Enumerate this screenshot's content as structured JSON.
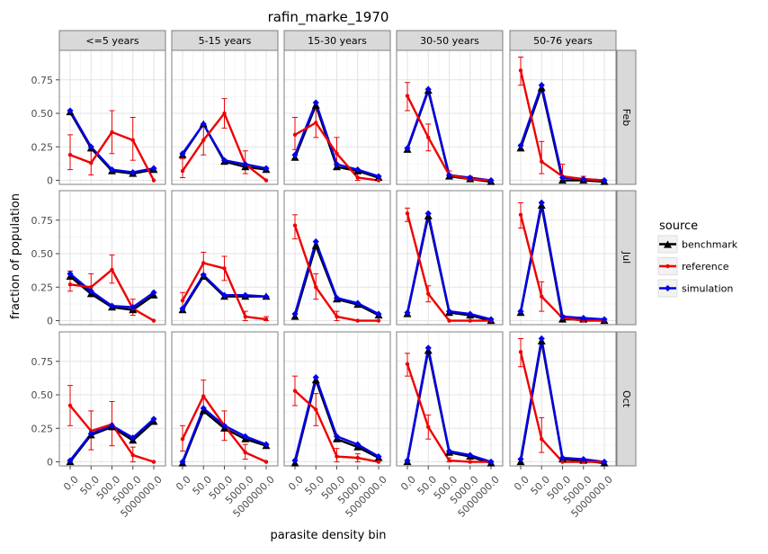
{
  "chart_data": {
    "type": "line",
    "title": "rafin_marke_1970",
    "xlabel": "parasite density bin",
    "ylabel": "fraction of population",
    "x_categories": [
      "0.0",
      "50.0",
      "500.0",
      "5000.0",
      "5000000.0"
    ],
    "y_ticks": [
      0,
      0.25,
      0.5,
      0.75
    ],
    "y_tick_labels": [
      "0",
      "0.25",
      "0.50",
      "0.75"
    ],
    "ylim": [
      -0.03,
      0.97
    ],
    "grid": true,
    "legend": {
      "title": "source",
      "position": "right",
      "entries": [
        {
          "name": "benchmark",
          "color": "#000000",
          "marker": "triangle"
        },
        {
          "name": "reference",
          "color": "#ee0000",
          "marker": "point"
        },
        {
          "name": "simulation",
          "color": "#0000ee",
          "marker": "diamond"
        }
      ]
    },
    "columns": [
      "<=5 years",
      "5-15 years",
      "15-30 years",
      "30-50 years",
      "50-76 years"
    ],
    "rows": [
      "Feb",
      "Jul",
      "Oct"
    ],
    "panels": [
      {
        "row": 0,
        "col": 0,
        "benchmark": [
          0.51,
          0.24,
          0.07,
          0.05,
          0.08
        ],
        "simulation": [
          0.52,
          0.25,
          0.08,
          0.06,
          0.09
        ],
        "reference": [
          0.19,
          0.13,
          0.36,
          0.3,
          0.0
        ],
        "ref_err": [
          [
            0.08,
            0.34
          ],
          [
            0.04,
            0.22
          ],
          [
            0.2,
            0.52
          ],
          [
            0.15,
            0.47
          ],
          [
            0.0,
            0.0
          ]
        ]
      },
      {
        "row": 0,
        "col": 1,
        "benchmark": [
          0.19,
          0.42,
          0.14,
          0.1,
          0.08
        ],
        "simulation": [
          0.2,
          0.42,
          0.15,
          0.12,
          0.09
        ],
        "reference": [
          0.07,
          0.3,
          0.5,
          0.12,
          0.0
        ],
        "ref_err": [
          [
            0.02,
            0.16
          ],
          [
            0.19,
            0.42
          ],
          [
            0.39,
            0.61
          ],
          [
            0.05,
            0.22
          ],
          [
            0.0,
            0.0
          ]
        ]
      },
      {
        "row": 0,
        "col": 2,
        "benchmark": [
          0.17,
          0.56,
          0.1,
          0.07,
          0.02
        ],
        "simulation": [
          0.19,
          0.58,
          0.12,
          0.08,
          0.03
        ],
        "reference": [
          0.34,
          0.43,
          0.2,
          0.02,
          0.0
        ],
        "ref_err": [
          [
            0.23,
            0.47
          ],
          [
            0.32,
            0.55
          ],
          [
            0.11,
            0.32
          ],
          [
            0.0,
            0.06
          ],
          [
            0.0,
            0.0
          ]
        ]
      },
      {
        "row": 0,
        "col": 3,
        "benchmark": [
          0.23,
          0.67,
          0.03,
          0.01,
          -0.01
        ],
        "simulation": [
          0.24,
          0.68,
          0.04,
          0.02,
          0.0
        ],
        "reference": [
          0.63,
          0.32,
          0.04,
          0.01,
          0.0
        ],
        "ref_err": [
          [
            0.52,
            0.73
          ],
          [
            0.22,
            0.42
          ],
          [
            0.01,
            0.07
          ],
          [
            0.0,
            0.03
          ],
          [
            0.0,
            0.0
          ]
        ]
      },
      {
        "row": 0,
        "col": 4,
        "benchmark": [
          0.24,
          0.69,
          0.0,
          0.0,
          -0.01
        ],
        "simulation": [
          0.26,
          0.71,
          0.02,
          0.01,
          0.0
        ],
        "reference": [
          0.82,
          0.14,
          0.03,
          0.01,
          0.0
        ],
        "ref_err": [
          [
            0.71,
            0.92
          ],
          [
            0.05,
            0.29
          ],
          [
            0.0,
            0.12
          ],
          [
            0.0,
            0.03
          ],
          [
            0.0,
            0.0
          ]
        ]
      },
      {
        "row": 1,
        "col": 0,
        "benchmark": [
          0.33,
          0.2,
          0.1,
          0.08,
          0.19
        ],
        "simulation": [
          0.35,
          0.22,
          0.11,
          0.1,
          0.21
        ],
        "reference": [
          0.27,
          0.25,
          0.38,
          0.09,
          0.0
        ],
        "ref_err": [
          [
            0.22,
            0.37
          ],
          [
            0.18,
            0.35
          ],
          [
            0.28,
            0.49
          ],
          [
            0.04,
            0.16
          ],
          [
            0.0,
            0.0
          ]
        ]
      },
      {
        "row": 1,
        "col": 1,
        "benchmark": [
          0.08,
          0.33,
          0.18,
          0.18,
          0.18
        ],
        "simulation": [
          0.09,
          0.34,
          0.19,
          0.19,
          0.18
        ],
        "reference": [
          0.15,
          0.43,
          0.39,
          0.03,
          0.01
        ],
        "ref_err": [
          [
            0.07,
            0.21
          ],
          [
            0.35,
            0.51
          ],
          [
            0.3,
            0.48
          ],
          [
            0.0,
            0.07
          ],
          [
            0.0,
            0.03
          ]
        ]
      },
      {
        "row": 1,
        "col": 2,
        "benchmark": [
          0.03,
          0.56,
          0.16,
          0.12,
          0.04
        ],
        "simulation": [
          0.05,
          0.59,
          0.17,
          0.13,
          0.05
        ],
        "reference": [
          0.71,
          0.25,
          0.03,
          0.0,
          0.0
        ],
        "ref_err": [
          [
            0.61,
            0.79
          ],
          [
            0.16,
            0.35
          ],
          [
            0.0,
            0.07
          ],
          [
            0.0,
            0.0
          ],
          [
            0.0,
            0.0
          ]
        ]
      },
      {
        "row": 1,
        "col": 3,
        "benchmark": [
          0.05,
          0.78,
          0.06,
          0.04,
          0.0
        ],
        "simulation": [
          0.06,
          0.8,
          0.07,
          0.05,
          0.01
        ],
        "reference": [
          0.8,
          0.2,
          0.0,
          0.0,
          0.0
        ],
        "ref_err": [
          [
            0.74,
            0.84
          ],
          [
            0.14,
            0.26
          ],
          [
            0.0,
            0.0
          ],
          [
            0.0,
            0.0
          ],
          [
            0.0,
            0.0
          ]
        ]
      },
      {
        "row": 1,
        "col": 4,
        "benchmark": [
          0.06,
          0.86,
          0.01,
          0.01,
          0.0
        ],
        "simulation": [
          0.07,
          0.88,
          0.03,
          0.02,
          0.01
        ],
        "reference": [
          0.79,
          0.18,
          0.02,
          0.0,
          0.0
        ],
        "ref_err": [
          [
            0.69,
            0.88
          ],
          [
            0.07,
            0.29
          ],
          [
            0.0,
            0.04
          ],
          [
            0.0,
            0.0
          ],
          [
            0.0,
            0.0
          ]
        ]
      },
      {
        "row": 2,
        "col": 0,
        "benchmark": [
          0.0,
          0.2,
          0.26,
          0.16,
          0.3
        ],
        "simulation": [
          0.01,
          0.21,
          0.27,
          0.18,
          0.32
        ],
        "reference": [
          0.42,
          0.23,
          0.28,
          0.05,
          0.0
        ],
        "ref_err": [
          [
            0.27,
            0.57
          ],
          [
            0.09,
            0.38
          ],
          [
            0.12,
            0.45
          ],
          [
            0.0,
            0.11
          ],
          [
            0.0,
            0.0
          ]
        ]
      },
      {
        "row": 2,
        "col": 1,
        "benchmark": [
          -0.01,
          0.38,
          0.25,
          0.17,
          0.12
        ],
        "simulation": [
          0.0,
          0.4,
          0.27,
          0.19,
          0.13
        ],
        "reference": [
          0.17,
          0.49,
          0.27,
          0.07,
          0.0
        ],
        "ref_err": [
          [
            0.08,
            0.27
          ],
          [
            0.38,
            0.61
          ],
          [
            0.16,
            0.38
          ],
          [
            0.02,
            0.13
          ],
          [
            0.0,
            0.0
          ]
        ]
      },
      {
        "row": 2,
        "col": 2,
        "benchmark": [
          -0.01,
          0.61,
          0.17,
          0.11,
          0.03
        ],
        "simulation": [
          0.01,
          0.63,
          0.19,
          0.13,
          0.04
        ],
        "reference": [
          0.53,
          0.39,
          0.04,
          0.03,
          0.0
        ],
        "ref_err": [
          [
            0.42,
            0.64
          ],
          [
            0.27,
            0.51
          ],
          [
            0.0,
            0.1
          ],
          [
            0.0,
            0.06
          ],
          [
            0.0,
            0.0
          ]
        ]
      },
      {
        "row": 2,
        "col": 3,
        "benchmark": [
          0.0,
          0.83,
          0.07,
          0.04,
          -0.01
        ],
        "simulation": [
          0.01,
          0.85,
          0.08,
          0.05,
          0.0
        ],
        "reference": [
          0.73,
          0.26,
          0.01,
          0.0,
          0.0
        ],
        "ref_err": [
          [
            0.64,
            0.81
          ],
          [
            0.17,
            0.35
          ],
          [
            0.0,
            0.03
          ],
          [
            0.0,
            0.0
          ],
          [
            0.0,
            0.0
          ]
        ]
      },
      {
        "row": 2,
        "col": 4,
        "benchmark": [
          0.0,
          0.9,
          0.02,
          0.01,
          -0.01
        ],
        "simulation": [
          0.02,
          0.92,
          0.03,
          0.02,
          0.0
        ],
        "reference": [
          0.82,
          0.17,
          0.0,
          0.0,
          0.0
        ],
        "ref_err": [
          [
            0.71,
            0.92
          ],
          [
            0.07,
            0.33
          ],
          [
            0.0,
            0.0
          ],
          [
            0.0,
            0.0
          ],
          [
            0.0,
            0.0
          ]
        ]
      }
    ]
  }
}
